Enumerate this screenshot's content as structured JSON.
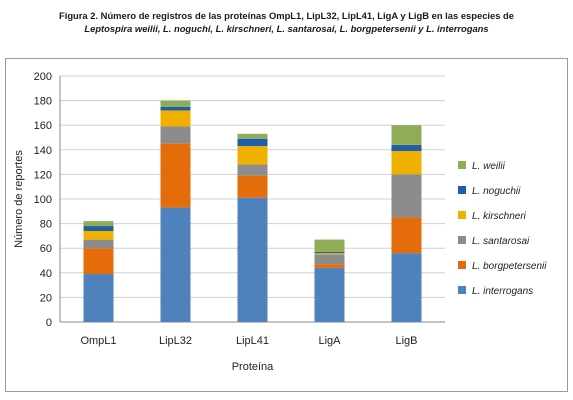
{
  "caption": {
    "line1": "Figura 2. Número de registros de las proteínas OmpL1, LipL32, LipL41, LigA y LigB en las especies de",
    "line2": "Leptospira weilii, L. noguchi,  L. kirschneri, L. santarosai, L. borgpetersenii y L. interrogans"
  },
  "chart_data": {
    "type": "bar",
    "stacked": true,
    "xlabel": "Proteína",
    "ylabel": "Número de reportes",
    "ylim": [
      0,
      200
    ],
    "yticks": [
      0,
      20,
      40,
      60,
      80,
      100,
      120,
      140,
      160,
      180,
      200
    ],
    "grid": "horizontal",
    "legend_position": "right",
    "categories": [
      "OmpL1",
      "LipL32",
      "LipL41",
      "LigA",
      "LigB"
    ],
    "series": [
      {
        "name": "L. interrogans",
        "color": "#4f81bd",
        "values": [
          39,
          93,
          101,
          44,
          56
        ]
      },
      {
        "name": "L. borgpetersenii",
        "color": "#e46c0a",
        "values": [
          21,
          52,
          18,
          3,
          29
        ]
      },
      {
        "name": "L. santarosai",
        "color": "#8c8c8c",
        "values": [
          7,
          14,
          9,
          8,
          35
        ]
      },
      {
        "name": "L. kirschneri",
        "color": "#f0b000",
        "values": [
          7,
          13,
          15,
          1,
          19
        ]
      },
      {
        "name": "L. noguchii",
        "color": "#1f5fa8",
        "values": [
          4,
          3,
          6,
          1,
          5
        ]
      },
      {
        "name": "L. weilii",
        "color": "#8fac56",
        "values": [
          4,
          5,
          4,
          10,
          16
        ]
      }
    ]
  }
}
